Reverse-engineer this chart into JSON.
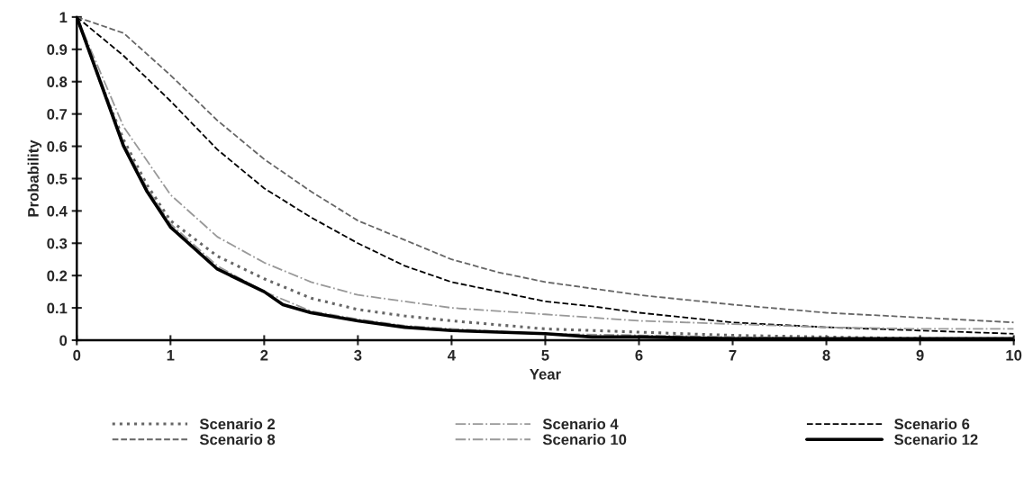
{
  "chart_data": {
    "type": "line",
    "xlabel": "Year",
    "ylabel": "Probability",
    "xlim": [
      0,
      10
    ],
    "ylim": [
      0,
      1
    ],
    "xticks": [
      0,
      1,
      2,
      3,
      4,
      5,
      6,
      7,
      8,
      9,
      10
    ],
    "yticks": [
      0,
      0.1,
      0.2,
      0.3,
      0.4,
      0.5,
      0.6,
      0.7,
      0.8,
      0.9,
      1
    ],
    "grid": false,
    "legend": "bottom",
    "marker": "none",
    "series": [
      {
        "name": "Scenario 2",
        "color": "#666666",
        "line_style": "dotted",
        "x": [
          0,
          0.25,
          0.5,
          0.75,
          1,
          1.5,
          2,
          2.5,
          3,
          3.5,
          4,
          5,
          6,
          7,
          8,
          9,
          10
        ],
        "values": [
          1,
          0.8,
          0.62,
          0.48,
          0.37,
          0.26,
          0.19,
          0.13,
          0.095,
          0.075,
          0.06,
          0.035,
          0.025,
          0.015,
          0.01,
          0.005,
          0.005
        ]
      },
      {
        "name": "Scenario 4",
        "color": "#999999",
        "line_style": "dashdot",
        "x": [
          0,
          0.25,
          0.5,
          0.75,
          1,
          1.5,
          2,
          2.5,
          3,
          3.5,
          4,
          5,
          6,
          7,
          8,
          10
        ],
        "values": [
          1,
          0.81,
          0.61,
          0.47,
          0.36,
          0.23,
          0.15,
          0.09,
          0.065,
          0.045,
          0.035,
          0.02,
          0.015,
          0.01,
          0.005,
          0.005
        ]
      },
      {
        "name": "Scenario 6",
        "color": "#000000",
        "line_style": "dashed",
        "x": [
          0,
          0.5,
          1,
          1.5,
          2,
          2.5,
          3,
          3.5,
          4,
          4.5,
          5,
          5.5,
          6,
          7,
          8,
          9,
          10
        ],
        "values": [
          1,
          0.88,
          0.74,
          0.59,
          0.47,
          0.38,
          0.3,
          0.23,
          0.18,
          0.15,
          0.12,
          0.105,
          0.085,
          0.055,
          0.04,
          0.03,
          0.02
        ]
      },
      {
        "name": "Scenario 8",
        "color": "#666666",
        "line_style": "dashed",
        "x": [
          0,
          0.5,
          1,
          1.5,
          2,
          2.5,
          3,
          3.5,
          4,
          4.5,
          5,
          6,
          7,
          8,
          9,
          10
        ],
        "values": [
          1,
          0.95,
          0.82,
          0.68,
          0.56,
          0.46,
          0.37,
          0.31,
          0.25,
          0.21,
          0.18,
          0.14,
          0.11,
          0.085,
          0.07,
          0.055
        ]
      },
      {
        "name": "Scenario 10",
        "color": "#999999",
        "line_style": "dashdot",
        "x": [
          0,
          0.5,
          1,
          1.5,
          2,
          2.5,
          3,
          4,
          5,
          6,
          7,
          8,
          9,
          10
        ],
        "values": [
          1,
          0.66,
          0.45,
          0.32,
          0.24,
          0.18,
          0.14,
          0.1,
          0.08,
          0.06,
          0.05,
          0.04,
          0.035,
          0.035
        ]
      },
      {
        "name": "Scenario 12",
        "color": "#000000",
        "line_style": "solid",
        "x": [
          0,
          0.25,
          0.5,
          0.75,
          1,
          1.5,
          2,
          2.2,
          2.5,
          3,
          3.5,
          4,
          5,
          5.5,
          6,
          7,
          10
        ],
        "values": [
          1,
          0.8,
          0.6,
          0.46,
          0.35,
          0.22,
          0.15,
          0.11,
          0.085,
          0.06,
          0.04,
          0.03,
          0.02,
          0.01,
          0.01,
          0.005,
          0.005
        ]
      }
    ]
  }
}
